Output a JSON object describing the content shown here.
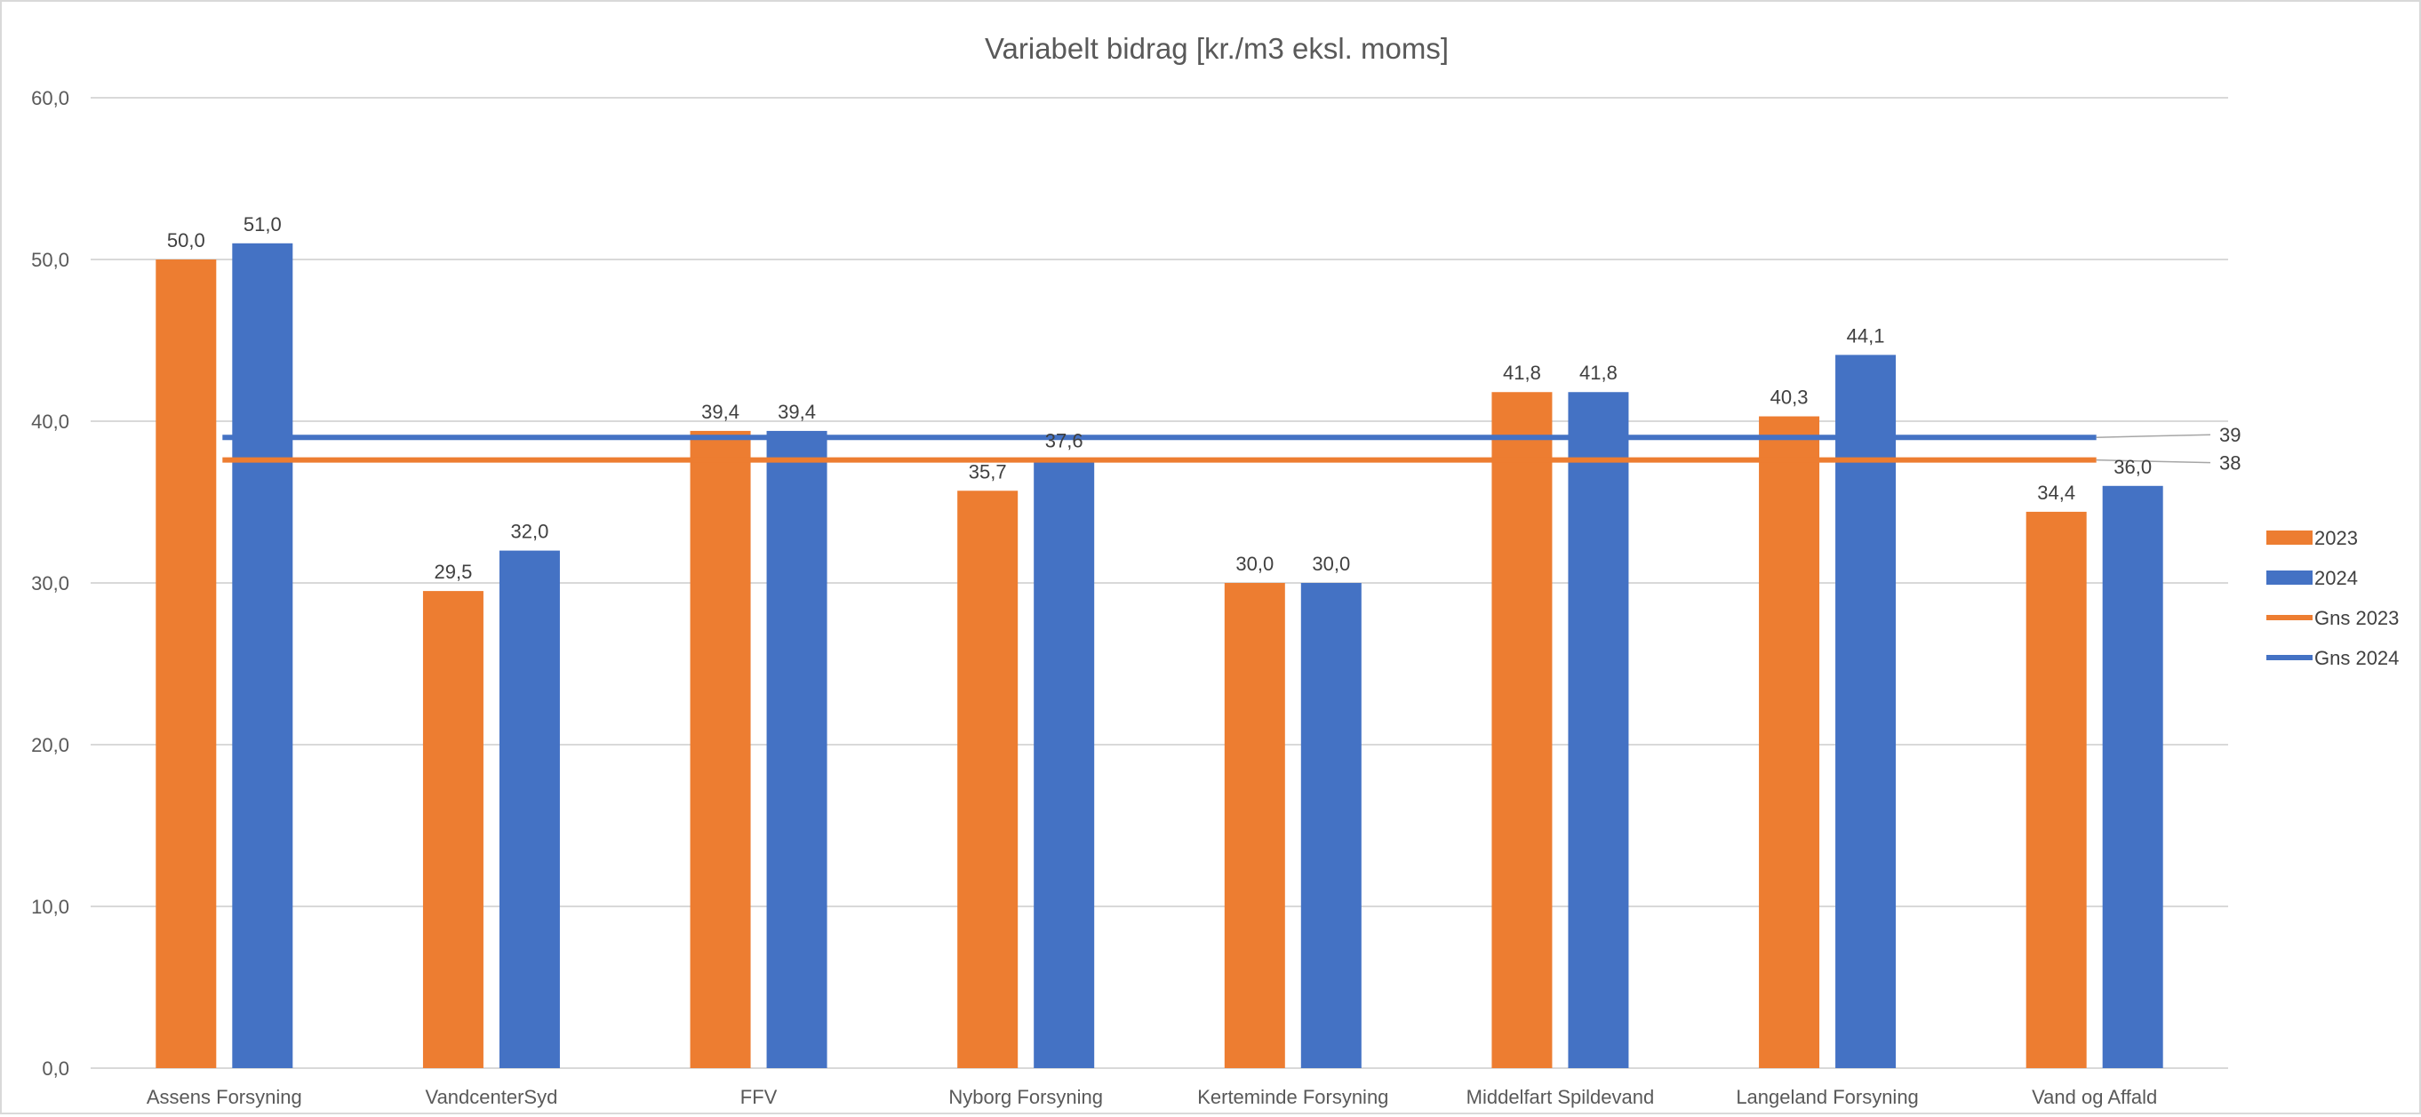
{
  "chart_data": {
    "type": "bar",
    "title": "Variabelt bidrag [kr./m3 eksl. moms]",
    "xlabel": "",
    "ylabel": "",
    "ylim": [
      0,
      60
    ],
    "yticks": [
      "0,0",
      "10,0",
      "20,0",
      "30,0",
      "40,0",
      "50,0",
      "60,0"
    ],
    "ytick_values": [
      0,
      10,
      20,
      30,
      40,
      50,
      60
    ],
    "grid": true,
    "legend": "right",
    "categories": [
      "Assens Forsyning",
      "VandcenterSyd",
      "FFV",
      "Nyborg Forsyning",
      "Kerteminde Forsyning",
      "Middelfart Spildevand",
      "Langeland Forsyning",
      "Vand og Affald"
    ],
    "series": [
      {
        "name": "2023",
        "color": "#ED7D31",
        "values": [
          50.0,
          29.5,
          39.4,
          35.7,
          30.0,
          41.8,
          40.3,
          34.4
        ],
        "labels": [
          "50,0",
          "29,5",
          "39,4",
          "35,7",
          "30,0",
          "41,8",
          "40,3",
          "34,4"
        ]
      },
      {
        "name": "2024",
        "color": "#4472C4",
        "values": [
          51.0,
          32.0,
          39.4,
          37.6,
          30.0,
          41.8,
          44.1,
          36.0
        ],
        "labels": [
          "51,0",
          "32,0",
          "39,4",
          "37,6",
          "30,0",
          "41,8",
          "44,1",
          "36,0"
        ]
      }
    ],
    "lines": [
      {
        "name": "Gns 2023",
        "color": "#ED7D31",
        "value": 37.6,
        "label": "38"
      },
      {
        "name": "Gns 2024",
        "color": "#4472C4",
        "value": 39.0,
        "label": "39"
      }
    ]
  }
}
